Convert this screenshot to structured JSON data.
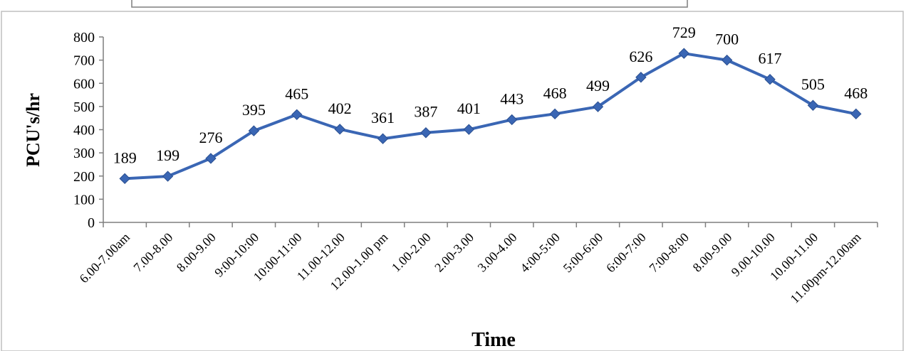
{
  "chart_data": {
    "type": "line",
    "title": "",
    "xlabel": "Time",
    "ylabel": "PCU's/hr",
    "ylim": [
      0,
      800
    ],
    "yticks": [
      0,
      100,
      200,
      300,
      400,
      500,
      600,
      700,
      800
    ],
    "grid": false,
    "legend": "none",
    "categories": [
      "6.00-7.00am",
      "7.00-8.00",
      "8.00-9.00",
      "9:00-10:00",
      "10:00-11:00",
      "11.00-12.00",
      "12.00-1.00 pm",
      "1.00-2.00",
      "2.00-3.00",
      "3.00-4.00",
      "4:00-5:00",
      "5:00-6:00",
      "6:00-7:00",
      "7:00-8:00",
      "8.00-9.00",
      "9.00-10.00",
      "10.00-11.00",
      "11.00pm-12.00am"
    ],
    "values": [
      189,
      199,
      276,
      395,
      465,
      402,
      361,
      387,
      401,
      443,
      468,
      499,
      626,
      729,
      700,
      617,
      505,
      468
    ],
    "data_labels": [
      "189",
      "199",
      "276",
      "395",
      "465",
      "402",
      "361",
      "387",
      "401",
      "443",
      "468",
      "499",
      "626",
      "729",
      "700",
      "617",
      "505",
      "468"
    ],
    "colors": {
      "line": "#3a66b4",
      "marker": "#3a66b4",
      "axis": "#7f7f7f"
    }
  }
}
